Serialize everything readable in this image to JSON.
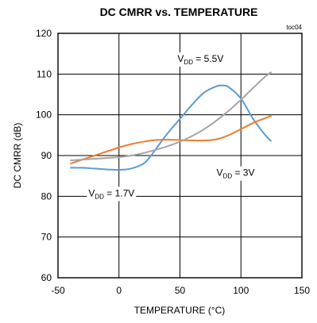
{
  "chart_data": {
    "type": "line",
    "title": "DC CMRR vs. TEMPERATURE",
    "tag": "toc04",
    "xlabel": "TEMPERATURE (°C)",
    "ylabel": "DC CMRR (dB)",
    "xlim": [
      -50,
      150
    ],
    "ylim": [
      60,
      120
    ],
    "xticks": [
      -50,
      0,
      50,
      100,
      150
    ],
    "yticks": [
      60,
      70,
      80,
      90,
      100,
      110,
      120
    ],
    "grid": true,
    "series": [
      {
        "name": "VDD = 1.7V",
        "color": "#5b9bd5",
        "x": [
          -40,
          -30,
          -20,
          -10,
          0,
          10,
          20,
          25,
          30,
          40,
          50,
          60,
          70,
          80,
          85,
          90,
          100,
          110,
          120,
          125
        ],
        "y": [
          87,
          87,
          86.8,
          86.6,
          86.5,
          86.8,
          88,
          89.5,
          91.5,
          95.5,
          99,
          102.5,
          105.5,
          107,
          107.2,
          106.8,
          104,
          99,
          95,
          93.5
        ]
      },
      {
        "name": "VDD = 3V",
        "color": "#ed7d31",
        "x": [
          -40,
          -30,
          -20,
          -10,
          0,
          10,
          20,
          30,
          40,
          50,
          60,
          70,
          80,
          90,
          100,
          110,
          120,
          125
        ],
        "y": [
          88,
          89,
          90,
          91,
          92,
          92.8,
          93.4,
          93.8,
          93.9,
          93.8,
          93.7,
          93.7,
          94,
          95,
          96.5,
          98,
          99.2,
          99.8
        ]
      },
      {
        "name": "VDD = 5.5V",
        "color": "#a5a5a5",
        "x": [
          -40,
          -30,
          -20,
          -10,
          0,
          10,
          20,
          30,
          40,
          50,
          60,
          70,
          80,
          90,
          100,
          110,
          120,
          125
        ],
        "y": [
          88.8,
          89,
          89.2,
          89.4,
          89.6,
          90,
          90.6,
          91.4,
          92.3,
          93.4,
          94.8,
          96.5,
          98.6,
          101,
          103.7,
          106.6,
          109.4,
          110.5
        ]
      }
    ],
    "annotations": [
      {
        "main": "V",
        "sub": "DD",
        "rest": " = 5.5V",
        "x": 48,
        "y": 113
      },
      {
        "main": "V",
        "sub": "DD",
        "rest": " = 3V",
        "x": 80,
        "y": 85
      },
      {
        "main": "V",
        "sub": "DD",
        "rest": " = 1.7V",
        "x": -25,
        "y": 80
      }
    ]
  }
}
